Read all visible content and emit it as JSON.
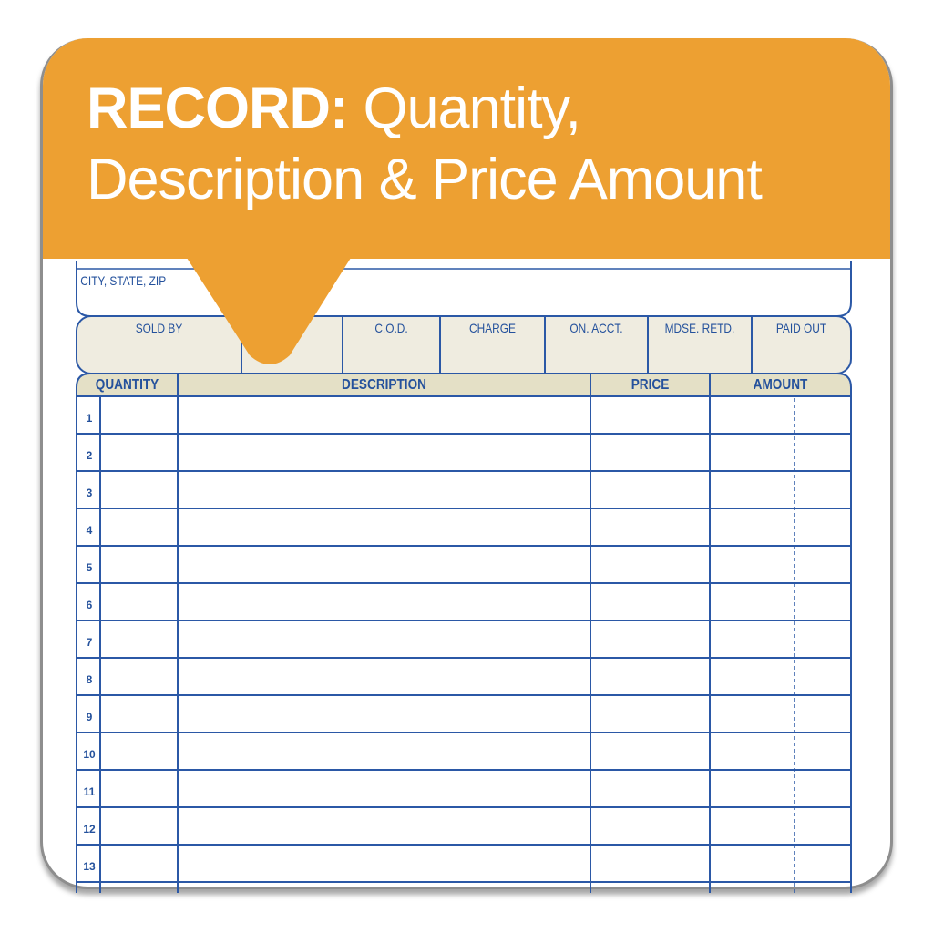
{
  "banner": {
    "bold": "RECORD:",
    "line1_rest": " Quantity,",
    "line2": "Description & Price Amount",
    "color": "#EDA032"
  },
  "form": {
    "city_label": "CITY, STATE, ZIP",
    "sale_types": [
      "SOLD BY",
      "",
      "C.O.D.",
      "CHARGE",
      "ON. ACCT.",
      "MDSE. RETD.",
      "PAID OUT"
    ],
    "columns": [
      "QUANTITY",
      "DESCRIPTION",
      "PRICE",
      "AMOUNT"
    ],
    "row_numbers": [
      "1",
      "2",
      "3",
      "4",
      "5",
      "6",
      "7",
      "8",
      "9",
      "10",
      "11",
      "12",
      "13"
    ],
    "line_color": "#2b58a6",
    "header_fill": "#e4e0c6",
    "box_fill": "#efece0"
  }
}
